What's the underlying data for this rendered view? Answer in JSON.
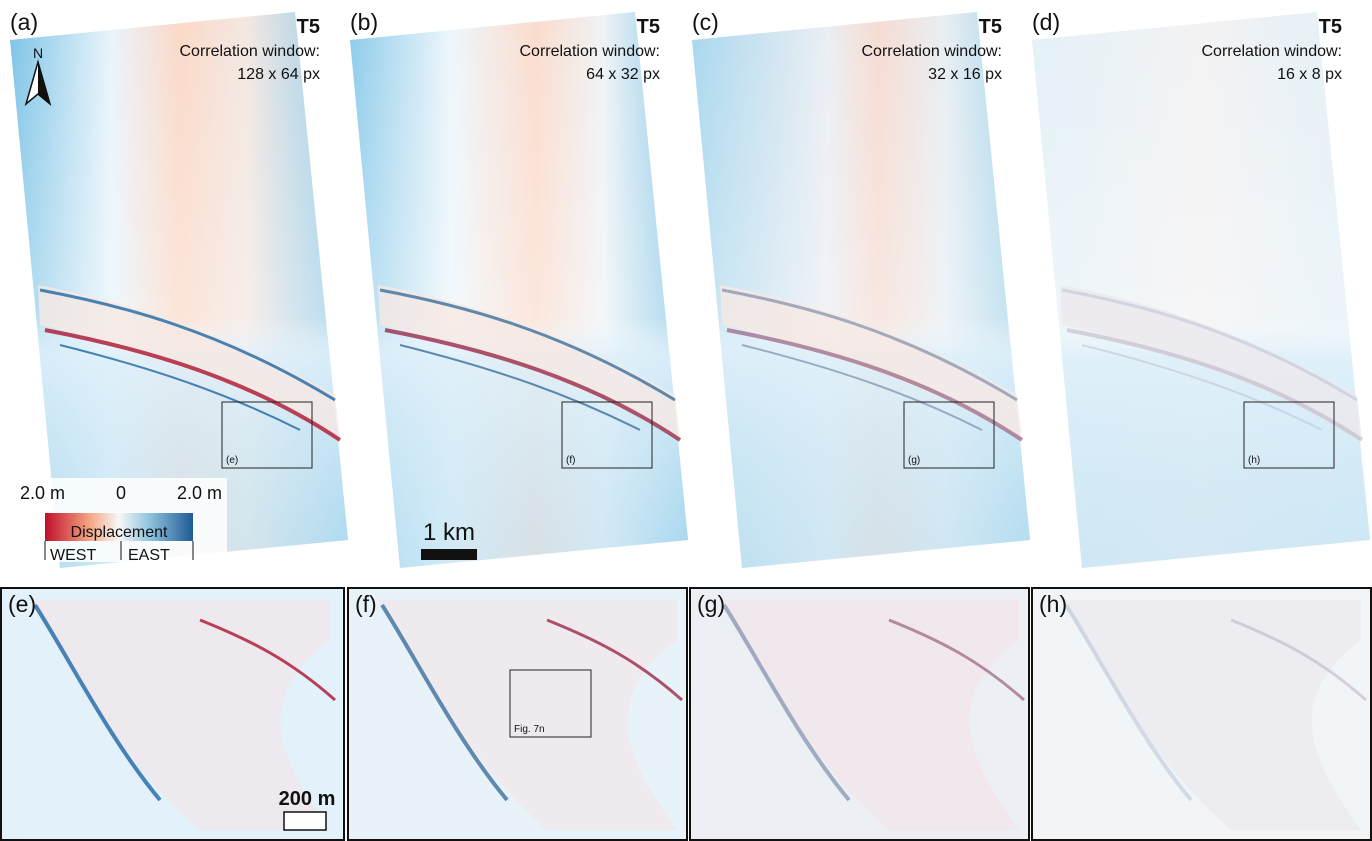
{
  "top_panels": [
    {
      "label": "(a)",
      "tag": "T5",
      "window_title": "Correlation window:",
      "window_size": "128 x 64 px",
      "inset_label": "(e)"
    },
    {
      "label": "(b)",
      "tag": "T5",
      "window_title": "Correlation window:",
      "window_size": "64 x 32 px",
      "inset_label": "(f)"
    },
    {
      "label": "(c)",
      "tag": "T5",
      "window_title": "Correlation window:",
      "window_size": "32 x 16 px",
      "inset_label": "(g)"
    },
    {
      "label": "(d)",
      "tag": "T5",
      "window_title": "Correlation window:",
      "window_size": "16 x 8 px",
      "inset_label": "(h)"
    }
  ],
  "north_label": "N",
  "legend": {
    "left": "2.0 m",
    "center": "0",
    "right": "2.0 m",
    "title": "Displacement",
    "west": "WEST",
    "east": "EAST"
  },
  "scale_top": "1 km",
  "bottom_panels": [
    {
      "label": "(e)"
    },
    {
      "label": "(f)"
    },
    {
      "label": "(g)"
    },
    {
      "label": "(h)"
    }
  ],
  "scale_bottom": "200 m",
  "figure_ref": "Fig. 7n"
}
